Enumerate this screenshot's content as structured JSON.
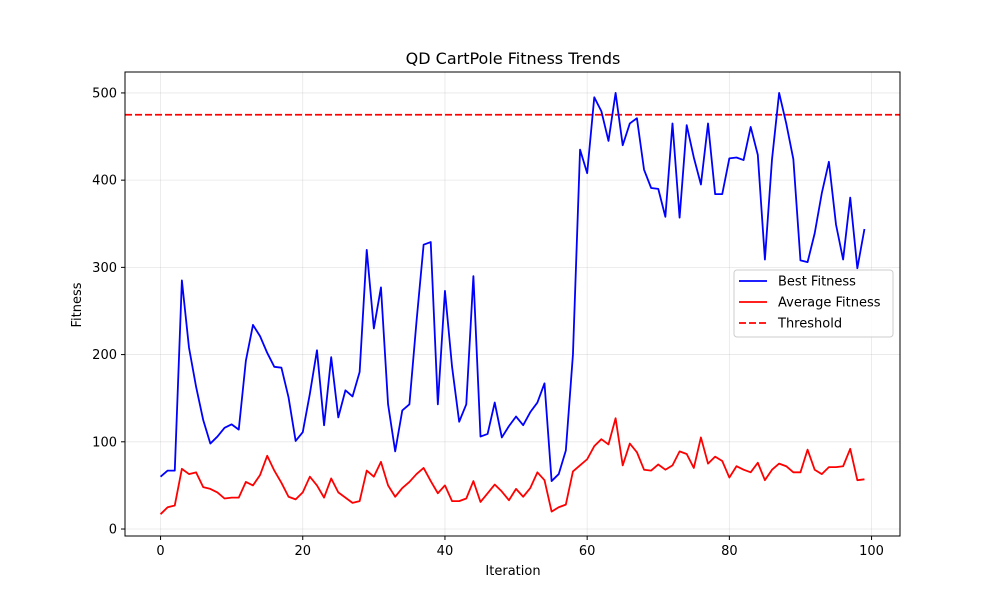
{
  "chart_data": {
    "type": "line",
    "title": "QD CartPole Fitness Trends",
    "xlabel": "Iteration",
    "ylabel": "Fitness",
    "xlim": [
      -5,
      104
    ],
    "ylim": [
      -8,
      524
    ],
    "xticks": [
      0,
      20,
      40,
      60,
      80,
      100
    ],
    "yticks": [
      0,
      100,
      200,
      300,
      400,
      500
    ],
    "grid": true,
    "legend_position": "center-right",
    "series": [
      {
        "name": "Best Fitness",
        "color": "#0000ff",
        "style": "solid",
        "x": [
          0,
          1,
          2,
          3,
          4,
          5,
          6,
          7,
          8,
          9,
          10,
          11,
          12,
          13,
          14,
          15,
          16,
          17,
          18,
          19,
          20,
          21,
          22,
          23,
          24,
          25,
          26,
          27,
          28,
          29,
          30,
          31,
          32,
          33,
          34,
          35,
          36,
          37,
          38,
          39,
          40,
          41,
          42,
          43,
          44,
          45,
          46,
          47,
          48,
          49,
          50,
          51,
          52,
          53,
          54,
          55,
          56,
          57,
          58,
          59,
          60,
          61,
          62,
          63,
          64,
          65,
          66,
          67,
          68,
          69,
          70,
          71,
          72,
          73,
          74,
          75,
          76,
          77,
          78,
          79,
          80,
          81,
          82,
          83,
          84,
          85,
          86,
          87,
          88,
          89,
          90,
          91,
          92,
          93,
          94,
          95,
          96,
          97,
          98,
          99
        ],
        "values": [
          60,
          67,
          67,
          285,
          208,
          163,
          125,
          98,
          106,
          116,
          120,
          114,
          193,
          234,
          221,
          202,
          186,
          185,
          151,
          101,
          111,
          155,
          205,
          119,
          197,
          128,
          159,
          152,
          180,
          320,
          230,
          277,
          143,
          89,
          136,
          143,
          238,
          326,
          329,
          143,
          273,
          186,
          123,
          143,
          290,
          106,
          109,
          145,
          105,
          118,
          129,
          119,
          134,
          145,
          167,
          55,
          63,
          90,
          200,
          435,
          408,
          495,
          479,
          445,
          500,
          440,
          465,
          471,
          412,
          391,
          390,
          358,
          465,
          357,
          463,
          426,
          395,
          465,
          384,
          384,
          425,
          426,
          423,
          461,
          429,
          309,
          424,
          500,
          465,
          424,
          308,
          306,
          339,
          385,
          421,
          349,
          309,
          380,
          299,
          344
        ]
      },
      {
        "name": "Average Fitness",
        "color": "#ff0000",
        "style": "solid",
        "x": [
          0,
          1,
          2,
          3,
          4,
          5,
          6,
          7,
          8,
          9,
          10,
          11,
          12,
          13,
          14,
          15,
          16,
          17,
          18,
          19,
          20,
          21,
          22,
          23,
          24,
          25,
          26,
          27,
          28,
          29,
          30,
          31,
          32,
          33,
          34,
          35,
          36,
          37,
          38,
          39,
          40,
          41,
          42,
          43,
          44,
          45,
          46,
          47,
          48,
          49,
          50,
          51,
          52,
          53,
          54,
          55,
          56,
          57,
          58,
          59,
          60,
          61,
          62,
          63,
          64,
          65,
          66,
          67,
          68,
          69,
          70,
          71,
          72,
          73,
          74,
          75,
          76,
          77,
          78,
          79,
          80,
          81,
          82,
          83,
          84,
          85,
          86,
          87,
          88,
          89,
          90,
          91,
          92,
          93,
          94,
          95,
          96,
          97,
          98,
          99
        ],
        "values": [
          17,
          25,
          27,
          69,
          63,
          65,
          48,
          46,
          42,
          35,
          36,
          36,
          54,
          50,
          62,
          84,
          67,
          53,
          37,
          34,
          42,
          60,
          50,
          36,
          58,
          42,
          36,
          30,
          32,
          67,
          60,
          77,
          50,
          37,
          47,
          54,
          63,
          70,
          55,
          41,
          50,
          32,
          32,
          35,
          55,
          31,
          41,
          51,
          43,
          33,
          46,
          37,
          47,
          65,
          56,
          20,
          25,
          28,
          66,
          73,
          80,
          95,
          103,
          97,
          127,
          73,
          98,
          88,
          68,
          67,
          74,
          68,
          73,
          89,
          86,
          70,
          105,
          75,
          83,
          78,
          59,
          72,
          68,
          65,
          76,
          56,
          68,
          75,
          72,
          65,
          65,
          91,
          68,
          63,
          71,
          71,
          72,
          92,
          56,
          57
        ]
      }
    ],
    "reference_lines": [
      {
        "name": "Threshold",
        "orientation": "horizontal",
        "value": 475,
        "color": "#ff0000",
        "style": "dashed"
      }
    ]
  }
}
